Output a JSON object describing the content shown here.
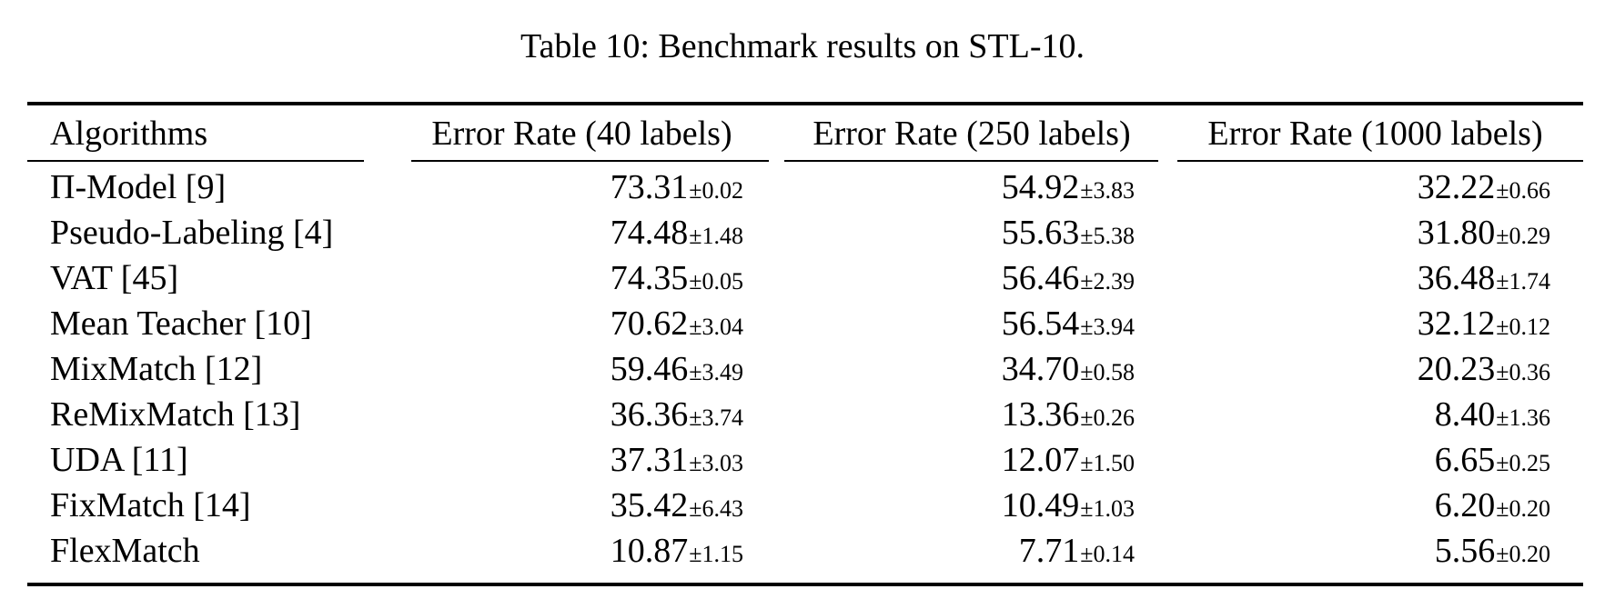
{
  "caption": "Table 10: Benchmark results on STL-10.",
  "table": {
    "columns": [
      "Algorithms",
      "Error Rate (40 labels)",
      "Error Rate (250 labels)",
      "Error Rate (1000 labels)"
    ],
    "rows": [
      {
        "algorithm": "Π-Model [9]",
        "values": [
          {
            "mean": "73.31",
            "std": "±0.02"
          },
          {
            "mean": "54.92",
            "std": "±3.83"
          },
          {
            "mean": "32.22",
            "std": "±0.66"
          }
        ]
      },
      {
        "algorithm": "Pseudo-Labeling [4]",
        "values": [
          {
            "mean": "74.48",
            "std": "±1.48"
          },
          {
            "mean": "55.63",
            "std": "±5.38"
          },
          {
            "mean": "31.80",
            "std": "±0.29"
          }
        ]
      },
      {
        "algorithm": "VAT [45]",
        "values": [
          {
            "mean": "74.35",
            "std": "±0.05"
          },
          {
            "mean": "56.46",
            "std": "±2.39"
          },
          {
            "mean": "36.48",
            "std": "±1.74"
          }
        ]
      },
      {
        "algorithm": "Mean Teacher [10]",
        "values": [
          {
            "mean": "70.62",
            "std": "±3.04"
          },
          {
            "mean": "56.54",
            "std": "±3.94"
          },
          {
            "mean": "32.12",
            "std": "±0.12"
          }
        ]
      },
      {
        "algorithm": "MixMatch [12]",
        "values": [
          {
            "mean": "59.46",
            "std": "±3.49"
          },
          {
            "mean": "34.70",
            "std": "±0.58"
          },
          {
            "mean": "20.23",
            "std": "±0.36"
          }
        ]
      },
      {
        "algorithm": "ReMixMatch [13]",
        "values": [
          {
            "mean": "36.36",
            "std": "±3.74"
          },
          {
            "mean": "13.36",
            "std": "±0.26"
          },
          {
            "mean": "8.40",
            "std": "±1.36"
          }
        ]
      },
      {
        "algorithm": "UDA [11]",
        "values": [
          {
            "mean": "37.31",
            "std": "±3.03"
          },
          {
            "mean": "12.07",
            "std": "±1.50"
          },
          {
            "mean": "6.65",
            "std": "±0.25"
          }
        ]
      },
      {
        "algorithm": "FixMatch [14]",
        "values": [
          {
            "mean": "35.42",
            "std": "±6.43"
          },
          {
            "mean": "10.49",
            "std": "±1.03"
          },
          {
            "mean": "6.20",
            "std": "±0.20"
          }
        ]
      },
      {
        "algorithm": "FlexMatch",
        "values": [
          {
            "mean": "10.87",
            "std": "±1.15"
          },
          {
            "mean": "7.71",
            "std": "±0.14"
          },
          {
            "mean": "5.56",
            "std": "±0.20"
          }
        ]
      }
    ]
  },
  "chart_data": {
    "type": "table",
    "title": "Table 10: Benchmark results on STL-10.",
    "categories": [
      "Π-Model [9]",
      "Pseudo-Labeling [4]",
      "VAT [45]",
      "Mean Teacher [10]",
      "MixMatch [12]",
      "ReMixMatch [13]",
      "UDA [11]",
      "FixMatch [14]",
      "FlexMatch"
    ],
    "series": [
      {
        "name": "Error Rate (40 labels)",
        "values": [
          73.31,
          74.48,
          74.35,
          70.62,
          59.46,
          36.36,
          37.31,
          35.42,
          10.87
        ],
        "std": [
          0.02,
          1.48,
          0.05,
          3.04,
          3.49,
          3.74,
          3.03,
          6.43,
          1.15
        ]
      },
      {
        "name": "Error Rate (250 labels)",
        "values": [
          54.92,
          55.63,
          56.46,
          56.54,
          34.7,
          13.36,
          12.07,
          10.49,
          7.71
        ],
        "std": [
          3.83,
          5.38,
          2.39,
          3.94,
          0.58,
          0.26,
          1.5,
          1.03,
          0.14
        ]
      },
      {
        "name": "Error Rate (1000 labels)",
        "values": [
          32.22,
          31.8,
          36.48,
          32.12,
          20.23,
          8.4,
          6.65,
          6.2,
          5.56
        ],
        "std": [
          0.66,
          0.29,
          1.74,
          0.12,
          0.36,
          1.36,
          0.25,
          0.2,
          0.2
        ]
      }
    ]
  }
}
